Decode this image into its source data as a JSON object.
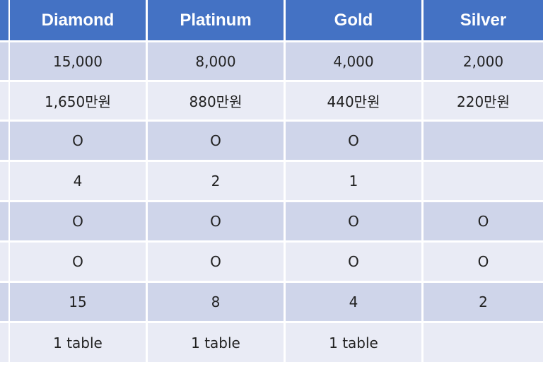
{
  "table": {
    "headers": [
      "Diamond",
      "Platinum",
      "Gold",
      "Silver"
    ],
    "rows": [
      [
        "15,000",
        "8,000",
        "4,000",
        "2,000"
      ],
      [
        "1,650만원",
        "880만원",
        "440만원",
        "220만원"
      ],
      [
        "O",
        "O",
        "O",
        ""
      ],
      [
        "4",
        "2",
        "1",
        ""
      ],
      [
        "O",
        "O",
        "O",
        "O"
      ],
      [
        "O",
        "O",
        "O",
        "O"
      ],
      [
        "15",
        "8",
        "4",
        "2"
      ],
      [
        "1 table",
        "1 table",
        "1 table",
        ""
      ]
    ]
  },
  "colors": {
    "header_bg": "#4472c4",
    "header_text": "#ffffff",
    "row_odd_bg": "#cfd5ea",
    "row_even_bg": "#e9ebf5"
  }
}
